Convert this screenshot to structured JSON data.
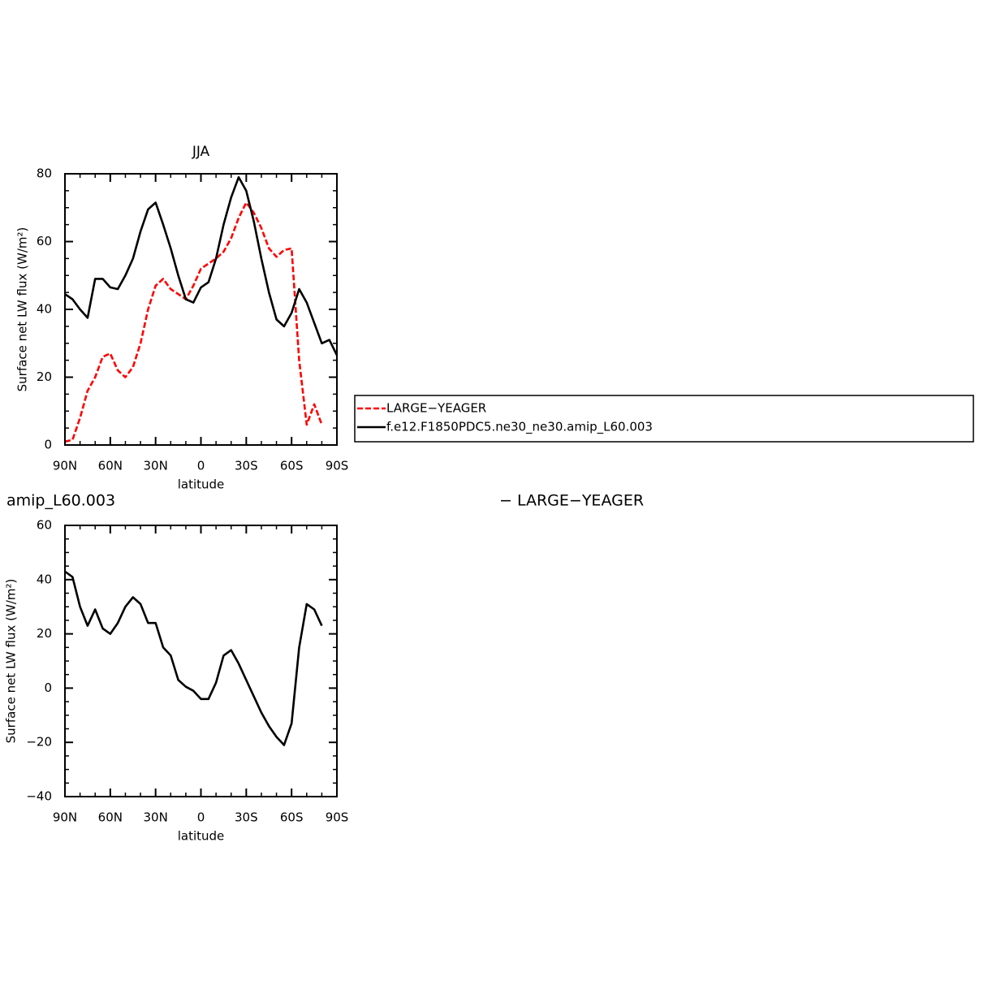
{
  "chart_data": [
    {
      "type": "line",
      "title": "JJA",
      "xlabel": "latitude",
      "ylabel": "Surface net LW flux (W/m²)",
      "x": [
        90,
        85,
        80,
        75,
        70,
        65,
        60,
        55,
        50,
        45,
        40,
        35,
        30,
        25,
        20,
        15,
        10,
        5,
        0,
        -5,
        -10,
        -15,
        -20,
        -25,
        -30,
        -35,
        -40,
        -45,
        -50,
        -55,
        -60,
        -65,
        -70,
        -75,
        -80,
        -85,
        -90
      ],
      "series": [
        {
          "name": "LARGE−YEAGER",
          "color": "#ff0000",
          "linestyle": "dashed",
          "values": [
            1,
            1.5,
            8,
            16,
            20,
            26,
            27,
            22,
            20,
            23,
            30,
            40,
            47,
            49,
            46,
            44.5,
            43,
            47,
            52,
            53.5,
            55,
            57,
            61,
            67,
            71.5,
            68.5,
            64,
            58,
            55.5,
            57.5,
            58,
            25,
            6,
            12,
            6,
            null,
            null
          ]
        },
        {
          "name": "f.e12.F1850PDC5.ne30_ne30.amip_L60.003",
          "color": "#000000",
          "linestyle": "solid",
          "values": [
            44.5,
            43,
            40,
            37.5,
            49,
            49,
            46.5,
            46,
            50,
            55,
            63,
            69.5,
            71.5,
            65,
            58,
            50,
            43,
            42,
            46.5,
            48,
            55,
            65,
            73,
            79,
            75,
            66,
            55,
            45,
            37,
            35,
            39,
            46,
            42,
            36,
            30,
            31,
            26.5
          ]
        }
      ],
      "xlim": [
        90,
        -90
      ],
      "xticks": [
        {
          "value": 90,
          "label": "90N"
        },
        {
          "value": 60,
          "label": "60N"
        },
        {
          "value": 30,
          "label": "30N"
        },
        0,
        {
          "value": -30,
          "label": "30S"
        },
        {
          "value": -60,
          "label": "60S"
        },
        {
          "value": -90,
          "label": "90S"
        }
      ],
      "ylim": [
        0,
        80
      ],
      "yticks": [
        0,
        20,
        40,
        60,
        80
      ],
      "grid": false
    },
    {
      "type": "line",
      "title": "amip_L60.003",
      "right_title": "−  LARGE−YEAGER",
      "xlabel": "latitude",
      "ylabel": "Surface net LW flux (W/m²)",
      "x": [
        90,
        85,
        80,
        75,
        70,
        65,
        60,
        55,
        50,
        45,
        40,
        35,
        30,
        25,
        20,
        15,
        10,
        5,
        0,
        -5,
        -10,
        -15,
        -20,
        -25,
        -30,
        -35,
        -40,
        -45,
        -50,
        -55,
        -60,
        -65,
        -70,
        -75,
        -80
      ],
      "series": [
        {
          "color": "#000000",
          "linestyle": "solid",
          "values": [
            43,
            41,
            30,
            23,
            29,
            22,
            20,
            24,
            30,
            33.5,
            31,
            24,
            24,
            15,
            12,
            3,
            0.5,
            -1,
            -4,
            -4,
            2,
            12,
            14,
            9,
            3,
            -3,
            -9,
            -14,
            -18,
            -21,
            -13,
            15,
            31,
            29,
            23
          ]
        }
      ],
      "xlim": [
        90,
        -90
      ],
      "xticks": [
        {
          "value": 90,
          "label": "90N"
        },
        {
          "value": 60,
          "label": "60N"
        },
        {
          "value": 30,
          "label": "30N"
        },
        0,
        {
          "value": -30,
          "label": "30S"
        },
        {
          "value": -60,
          "label": "60S"
        },
        {
          "value": -90,
          "label": "90S"
        }
      ],
      "ylim": [
        -40,
        60
      ],
      "yticks": [
        {
          "value": -40,
          "label": "−40"
        },
        {
          "value": -20,
          "label": "−20"
        },
        0,
        20,
        40,
        60
      ],
      "grid": false
    }
  ]
}
